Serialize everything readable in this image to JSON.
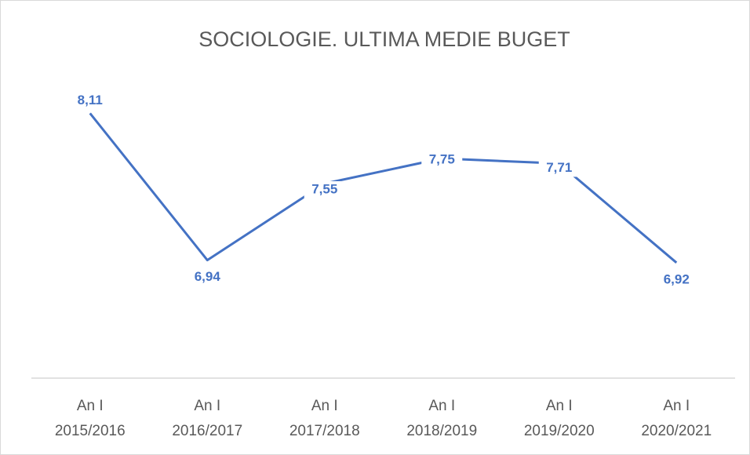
{
  "chart_data": {
    "type": "line",
    "title": "SOCIOLOGIE. ULTIMA MEDIE BUGET",
    "categories": [
      "An I 2015/2016",
      "An I 2016/2017",
      "An I 2017/2018",
      "An I 2018/2019",
      "An I 2019/2020",
      "An I 2020/2021"
    ],
    "series": [
      {
        "name": "Ultima medie buget",
        "color": "#4472c4",
        "values": [
          8.11,
          6.94,
          7.55,
          7.75,
          7.71,
          6.92
        ],
        "value_labels": [
          "8,11",
          "6,94",
          "7,55",
          "7,75",
          "7,71",
          "6,92"
        ]
      }
    ],
    "ylim": [
      6,
      8.5
    ]
  }
}
